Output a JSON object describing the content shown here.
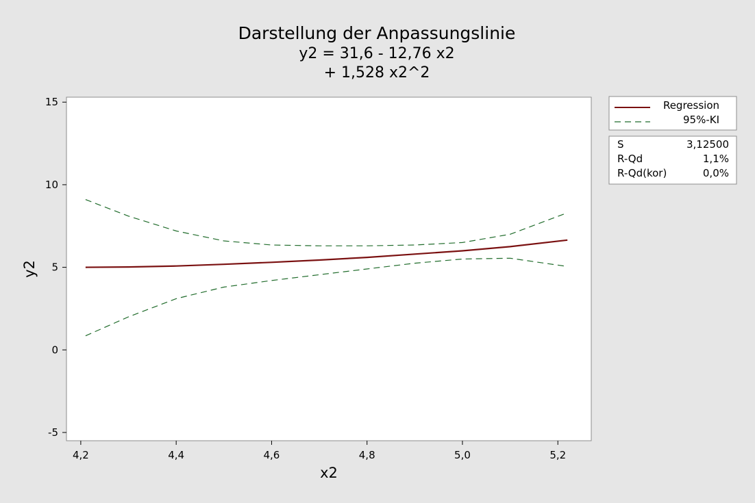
{
  "chart_data": {
    "type": "line",
    "title": "Darstellung der Anpassungslinie",
    "subtitle_lines": [
      "y2 = 31,6 - 12,76 x2",
      "+ 1,528 x2^2"
    ],
    "xlabel": "x2",
    "ylabel": "y2",
    "xlim": [
      4.17,
      5.27
    ],
    "ylim": [
      -5.5,
      15.3
    ],
    "xticks": [
      4.2,
      4.4,
      4.6,
      4.8,
      5.0,
      5.2
    ],
    "xtick_labels": [
      "4,2",
      "4,4",
      "4,6",
      "4,8",
      "5,0",
      "5,2"
    ],
    "yticks": [
      -5,
      0,
      5,
      10,
      15
    ],
    "ytick_labels": [
      "-5",
      "0",
      "5",
      "10",
      "15"
    ],
    "grid": false,
    "legend_position": "right",
    "series": [
      {
        "name": "Regression",
        "color": "#7a1010",
        "style": "solid",
        "x": [
          4.21,
          4.3,
          4.4,
          4.5,
          4.6,
          4.7,
          4.8,
          4.9,
          5.0,
          5.1,
          5.22
        ],
        "y": [
          5.0,
          5.02,
          5.08,
          5.18,
          5.3,
          5.44,
          5.6,
          5.8,
          6.0,
          6.25,
          6.65
        ]
      },
      {
        "name": "95%-KI",
        "color": "#1f6b2a",
        "style": "dashed",
        "x": [
          4.21,
          4.3,
          4.4,
          4.5,
          4.6,
          4.7,
          4.8,
          4.9,
          5.0,
          5.1,
          5.22
        ],
        "y": [
          9.1,
          8.1,
          7.2,
          6.6,
          6.35,
          6.3,
          6.3,
          6.35,
          6.5,
          7.0,
          8.3
        ]
      },
      {
        "name": "",
        "color": "#1f6b2a",
        "style": "dashed",
        "x": [
          4.21,
          4.3,
          4.4,
          4.5,
          4.6,
          4.7,
          4.8,
          4.9,
          5.0,
          5.1,
          5.22
        ],
        "y": [
          0.85,
          2.0,
          3.1,
          3.8,
          4.2,
          4.55,
          4.9,
          5.25,
          5.5,
          5.55,
          5.05
        ]
      }
    ],
    "legend": [
      {
        "label": "Regression",
        "color": "#7a1010",
        "style": "solid"
      },
      {
        "label": "95%-KI",
        "color": "#1f6b2a",
        "style": "dashed"
      }
    ],
    "stats": [
      {
        "label": "S",
        "value": "3,12500"
      },
      {
        "label": "R-Qd",
        "value": "1,1%"
      },
      {
        "label": "R-Qd(kor)",
        "value": "0,0%"
      }
    ]
  }
}
